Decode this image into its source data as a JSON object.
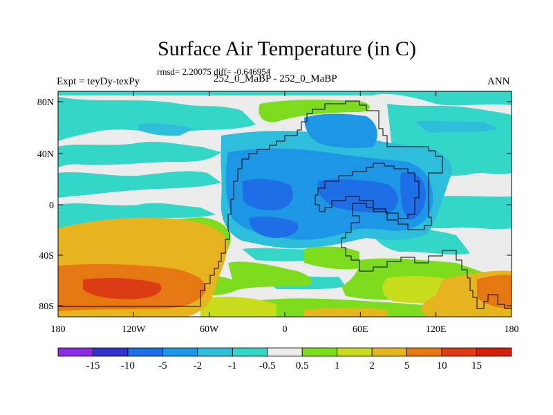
{
  "title": "Surface Air Temperature (in C)",
  "stats": "rmsd= 2.20075 diff= -0.646954",
  "left_label": "Expt = teyDy-texPy",
  "center_label": "252_0_MaBP - 252_0_MaBP",
  "right_label": "ANN",
  "lon_ticks": [
    "180",
    "120W",
    "60W",
    "0",
    "60E",
    "120E",
    "180"
  ],
  "lat_ticks": [
    "80N",
    "40N",
    "0",
    "40S",
    "80S"
  ],
  "colorbar": {
    "labels": [
      "-15",
      "-10",
      "-5",
      "-2",
      "-1",
      "-0.5",
      "0.5",
      "1",
      "2",
      "5",
      "10",
      "15"
    ],
    "colors": [
      "#8a2be2",
      "#3232cd",
      "#1e6ee6",
      "#1e96e6",
      "#2ebedc",
      "#34d6c8",
      "#ececec",
      "#7ddc1e",
      "#c8dc1e",
      "#e6b41e",
      "#e67814",
      "#dc3c14",
      "#d21e0a"
    ]
  }
}
